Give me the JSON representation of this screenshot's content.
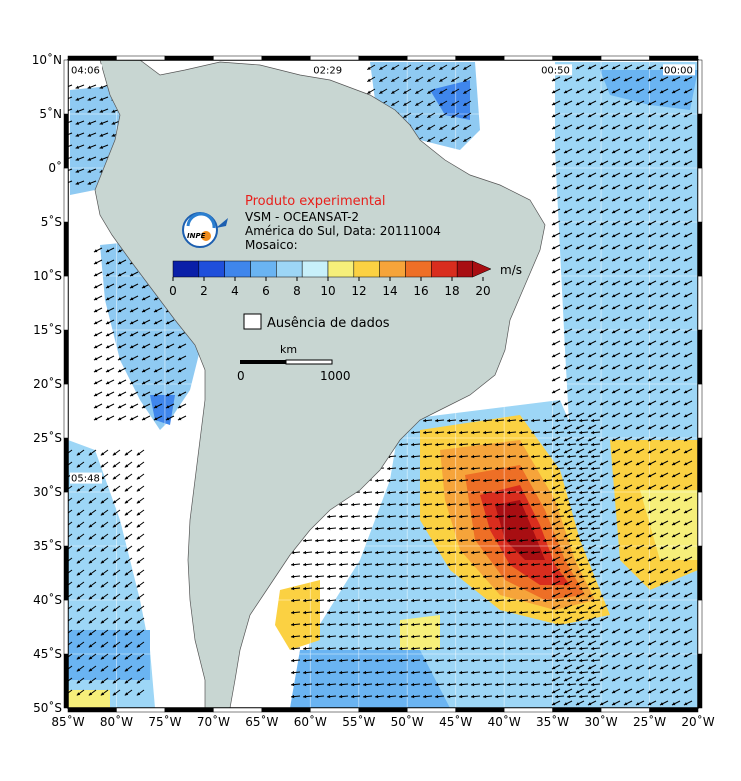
{
  "map": {
    "lon_range": [
      -85,
      -20
    ],
    "lat_range": [
      -50,
      10
    ],
    "land_color": "#c8d6d2",
    "frame_color": "#000000",
    "lon_ticks": [
      "85˚W",
      "80˚W",
      "75˚W",
      "70˚W",
      "65˚W",
      "60˚W",
      "55˚W",
      "50˚W",
      "45˚W",
      "40˚W",
      "35˚W",
      "30˚W",
      "25˚W",
      "20˚W"
    ],
    "lat_ticks": [
      "10˚N",
      "5˚N",
      "0˚",
      "5˚S",
      "10˚S",
      "15˚S",
      "20˚S",
      "25˚S",
      "30˚S",
      "35˚S",
      "40˚S",
      "45˚S",
      "50˚S"
    ],
    "time_labels": [
      {
        "text": "04:06",
        "lon": -85,
        "lat": 9.6
      },
      {
        "text": "02:29",
        "lon": -60,
        "lat": 9.6
      },
      {
        "text": "00:50",
        "lon": -36.5,
        "lat": 9.6
      },
      {
        "text": "00:00",
        "lon": -23,
        "lat": 9.6
      },
      {
        "text": "05:48",
        "lon": -85,
        "lat": -28.2
      }
    ]
  },
  "legend": {
    "title": "Produto experimental",
    "title_color": "#e8201c",
    "line1": "VSM - OCEANSAT-2",
    "line2": "América do Sul, Data: 20111004",
    "line3": "Mosaico:",
    "unit": "m/s",
    "ticks": [
      "0",
      "2",
      "4",
      "6",
      "8",
      "10",
      "12",
      "14",
      "16",
      "18",
      "20"
    ],
    "colors": [
      "#0a1fa8",
      "#1f4fdb",
      "#3f86ec",
      "#6ab4f2",
      "#9dd6f6",
      "#c8f0fa",
      "#f6ef7a",
      "#fbd142",
      "#f6a43a",
      "#ee6f26",
      "#d92d1e",
      "#a80e12"
    ],
    "missing_label": "Ausência de dados",
    "scale_unit": "km",
    "scale_start": "0",
    "scale_end": "1000",
    "logo_text": "INPE"
  }
}
